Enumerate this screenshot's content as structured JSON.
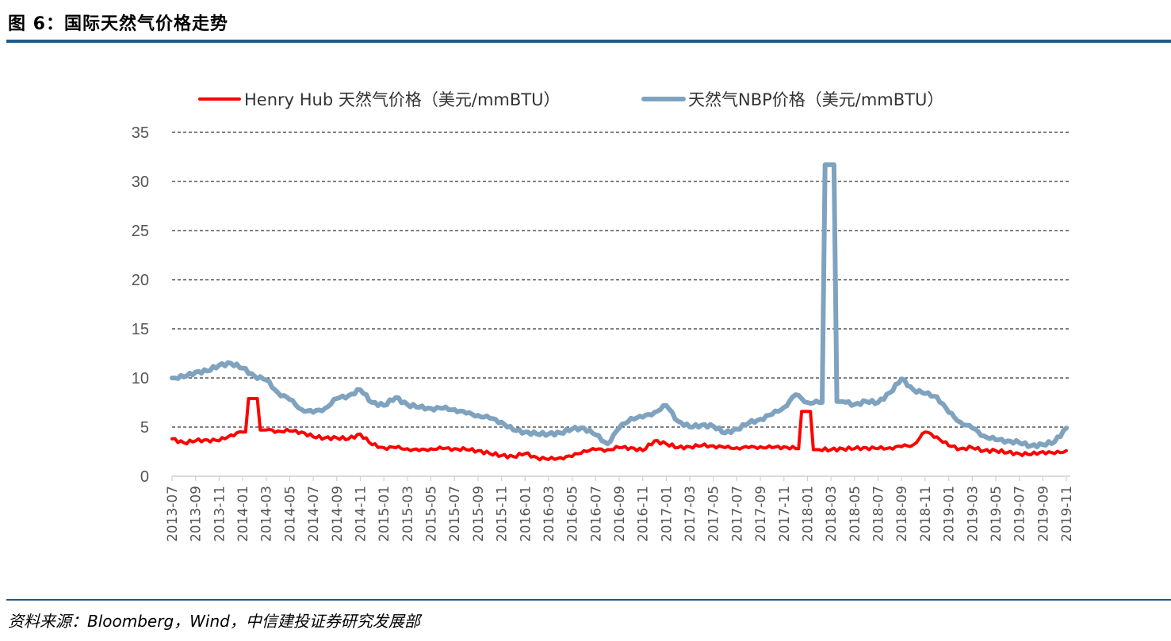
{
  "header": {
    "title": "图 6：国际天然气价格走势"
  },
  "footer": {
    "source": "资料来源：Bloomberg，Wind，中信建投证券研究发展部"
  },
  "colors": {
    "rule": "#1f5a8a",
    "henry_hub": "#ff0000",
    "nbp": "#7fa3bf",
    "grid": "#000000"
  },
  "chart_data": {
    "type": "line",
    "title": "国际天然气价格走势",
    "xlabel": "",
    "ylabel": "",
    "ylim": [
      0,
      35
    ],
    "yticks": [
      0,
      5,
      10,
      15,
      20,
      25,
      30,
      35
    ],
    "grid": "horizontal dashed",
    "legend_position": "top",
    "x_tick_labels": [
      "2013-07",
      "2013-09",
      "2013-11",
      "2014-01",
      "2014-03",
      "2014-05",
      "2014-07",
      "2014-09",
      "2014-11",
      "2015-01",
      "2015-03",
      "2015-05",
      "2015-07",
      "2015-09",
      "2015-11",
      "2016-01",
      "2016-03",
      "2016-05",
      "2016-07",
      "2016-09",
      "2016-11",
      "2017-01",
      "2017-03",
      "2017-05",
      "2017-07",
      "2017-09",
      "2017-11",
      "2018-01",
      "2018-03",
      "2018-05",
      "2018-07",
      "2018-09",
      "2018-11",
      "2019-01",
      "2019-03",
      "2019-05",
      "2019-07",
      "2019-09",
      "2019-11"
    ],
    "x": [
      "2013-07",
      "2013-08",
      "2013-09",
      "2013-10",
      "2013-11",
      "2013-12",
      "2014-01",
      "2014-02",
      "2014-03",
      "2014-04",
      "2014-05",
      "2014-06",
      "2014-07",
      "2014-08",
      "2014-09",
      "2014-10",
      "2014-11",
      "2014-12",
      "2015-01",
      "2015-02",
      "2015-03",
      "2015-04",
      "2015-05",
      "2015-06",
      "2015-07",
      "2015-08",
      "2015-09",
      "2015-10",
      "2015-11",
      "2015-12",
      "2016-01",
      "2016-02",
      "2016-03",
      "2016-04",
      "2016-05",
      "2016-06",
      "2016-07",
      "2016-08",
      "2016-09",
      "2016-10",
      "2016-11",
      "2016-12",
      "2017-01",
      "2017-02",
      "2017-03",
      "2017-04",
      "2017-05",
      "2017-06",
      "2017-07",
      "2017-08",
      "2017-09",
      "2017-10",
      "2017-11",
      "2017-12",
      "2018-01",
      "2018-02",
      "2018-03",
      "2018-04",
      "2018-05",
      "2018-06",
      "2018-07",
      "2018-08",
      "2018-09",
      "2018-10",
      "2018-11",
      "2018-12",
      "2019-01",
      "2019-02",
      "2019-03",
      "2019-04",
      "2019-05",
      "2019-06",
      "2019-07",
      "2019-08",
      "2019-09",
      "2019-10",
      "2019-11"
    ],
    "series": [
      {
        "name": "Henry Hub 天然气价格（美元/mmBTU）",
        "color": "#ff0000",
        "values": [
          3.8,
          3.4,
          3.6,
          3.7,
          3.6,
          4.2,
          4.5,
          7.9,
          4.7,
          4.6,
          4.6,
          4.5,
          4.0,
          3.9,
          3.9,
          3.8,
          4.3,
          3.2,
          2.9,
          2.9,
          2.8,
          2.6,
          2.8,
          2.8,
          2.8,
          2.7,
          2.6,
          2.3,
          2.1,
          2.0,
          2.3,
          1.9,
          1.7,
          1.9,
          2.0,
          2.6,
          2.7,
          2.7,
          2.9,
          2.9,
          2.6,
          3.6,
          3.3,
          2.9,
          3.0,
          3.1,
          3.1,
          2.9,
          2.9,
          2.9,
          3.0,
          2.9,
          3.0,
          2.8,
          6.6,
          2.7,
          2.7,
          2.8,
          2.8,
          2.9,
          2.8,
          2.9,
          3.0,
          3.2,
          4.5,
          4.0,
          3.1,
          2.8,
          2.9,
          2.6,
          2.6,
          2.4,
          2.3,
          2.2,
          2.5,
          2.3,
          2.6
        ]
      },
      {
        "name": "天然气NBP价格（美元/mmBTU）",
        "color": "#7fa3bf",
        "values": [
          10.0,
          10.1,
          10.6,
          10.7,
          11.3,
          11.5,
          11.0,
          10.2,
          9.8,
          8.5,
          7.8,
          6.8,
          6.5,
          6.9,
          7.9,
          8.2,
          8.8,
          7.5,
          7.2,
          8.0,
          7.3,
          7.0,
          6.9,
          6.9,
          6.8,
          6.4,
          6.2,
          5.9,
          5.5,
          4.7,
          4.5,
          4.3,
          4.3,
          4.4,
          4.8,
          4.9,
          4.2,
          3.3,
          4.9,
          5.9,
          6.0,
          6.5,
          7.2,
          5.6,
          5.0,
          5.2,
          5.1,
          4.4,
          4.8,
          5.4,
          5.8,
          6.3,
          7.0,
          8.3,
          7.5,
          7.5,
          31.7,
          7.6,
          7.3,
          7.6,
          7.5,
          8.5,
          9.9,
          8.8,
          8.4,
          8.1,
          6.5,
          5.5,
          4.9,
          4.1,
          3.7,
          3.6,
          3.4,
          3.1,
          3.2,
          3.5,
          4.9
        ]
      }
    ]
  }
}
